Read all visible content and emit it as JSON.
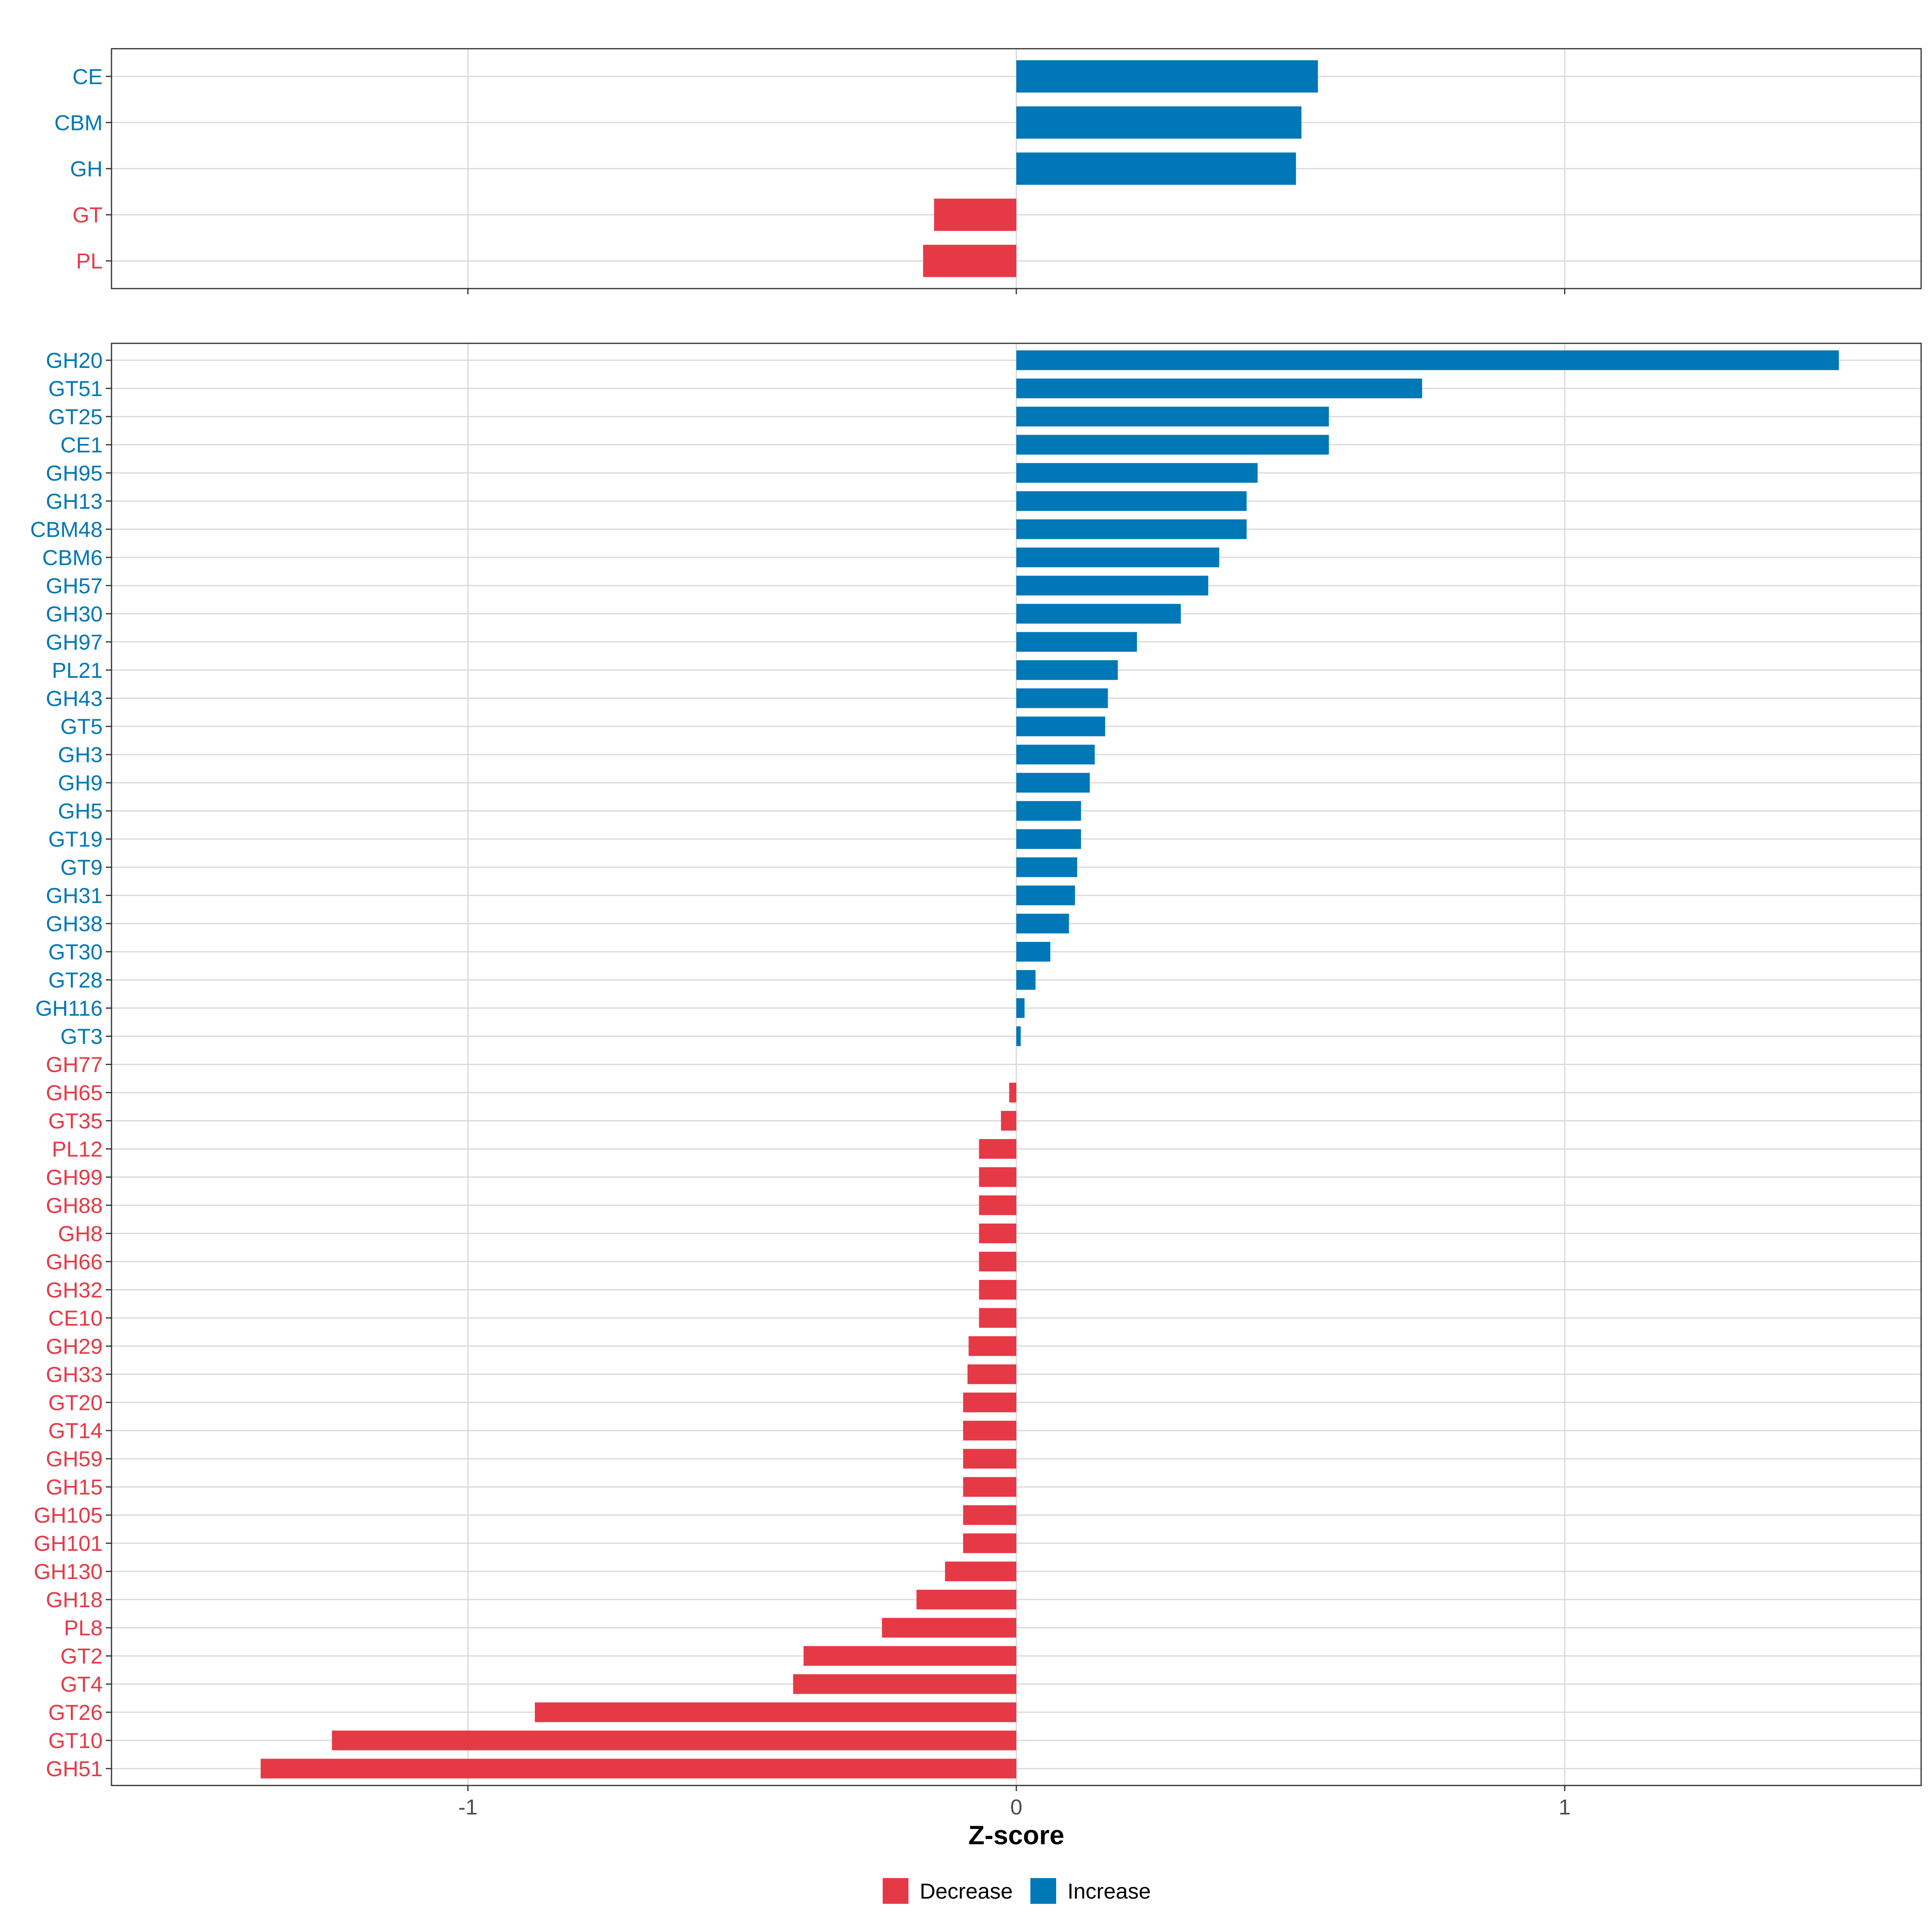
{
  "chart_data": [
    {
      "type": "bar",
      "orientation": "horizontal",
      "panel": "class",
      "categories": [
        "CE",
        "CBM",
        "GH",
        "GT",
        "PL"
      ],
      "values": [
        0.55,
        0.52,
        0.51,
        -0.15,
        -0.17
      ],
      "directions": [
        "Increase",
        "Increase",
        "Increase",
        "Decrease",
        "Decrease"
      ],
      "xlim": [
        -1.65,
        1.65
      ],
      "grid": true
    },
    {
      "type": "bar",
      "orientation": "horizontal",
      "panel": "family",
      "categories": [
        "GH20",
        "GT51",
        "GT25",
        "CE1",
        "GH95",
        "GH13",
        "CBM48",
        "CBM6",
        "GH57",
        "GH30",
        "GH97",
        "PL21",
        "GH43",
        "GT5",
        "GH3",
        "GH9",
        "GH5",
        "GT19",
        "GT9",
        "GH31",
        "GH38",
        "GT30",
        "GT28",
        "GH116",
        "GT3",
        "GH77",
        "GH65",
        "GT35",
        "PL12",
        "GH99",
        "GH88",
        "GH8",
        "GH66",
        "GH32",
        "CE10",
        "GH29",
        "GH33",
        "GT20",
        "GT14",
        "GH59",
        "GH15",
        "GH105",
        "GH101",
        "GH130",
        "GH18",
        "PL8",
        "GT2",
        "GT4",
        "GT26",
        "GT10",
        "GH51"
      ],
      "values": [
        1.5,
        0.74,
        0.57,
        0.57,
        0.44,
        0.42,
        0.42,
        0.37,
        0.35,
        0.3,
        0.22,
        0.185,
        0.167,
        0.162,
        0.143,
        0.134,
        0.118,
        0.118,
        0.111,
        0.107,
        0.096,
        0.062,
        0.035,
        0.015,
        0.008,
        0,
        -0.013,
        -0.028,
        -0.068,
        -0.068,
        -0.068,
        -0.068,
        -0.068,
        -0.068,
        -0.068,
        -0.087,
        -0.089,
        -0.097,
        -0.097,
        -0.097,
        -0.097,
        -0.097,
        -0.097,
        -0.13,
        -0.182,
        -0.245,
        -0.388,
        -0.407,
        -0.878,
        -1.248,
        -1.378
      ],
      "directions": [
        "Increase",
        "Increase",
        "Increase",
        "Increase",
        "Increase",
        "Increase",
        "Increase",
        "Increase",
        "Increase",
        "Increase",
        "Increase",
        "Increase",
        "Increase",
        "Increase",
        "Increase",
        "Increase",
        "Increase",
        "Increase",
        "Increase",
        "Increase",
        "Increase",
        "Increase",
        "Increase",
        "Increase",
        "Increase",
        "Decrease",
        "Decrease",
        "Decrease",
        "Decrease",
        "Decrease",
        "Decrease",
        "Decrease",
        "Decrease",
        "Decrease",
        "Decrease",
        "Decrease",
        "Decrease",
        "Decrease",
        "Decrease",
        "Decrease",
        "Decrease",
        "Decrease",
        "Decrease",
        "Decrease",
        "Decrease",
        "Decrease",
        "Decrease",
        "Decrease",
        "Decrease",
        "Decrease",
        "Decrease"
      ],
      "xlim": [
        -1.65,
        1.65
      ],
      "grid": true
    }
  ],
  "x_ticks": [
    "-1",
    "0",
    "1"
  ],
  "x_tick_values": [
    -1,
    0,
    1
  ],
  "xlabel": "Z-score",
  "legend": {
    "position": "bottom",
    "entries": [
      {
        "label": "Decrease",
        "color": "#e63946"
      },
      {
        "label": "Increase",
        "color": "#0077b6"
      }
    ]
  },
  "colors": {
    "Increase": "#0077b6",
    "Decrease": "#e63946",
    "grid": "#d9d9d9",
    "panel_border": "#333333",
    "tick_text": "#4d4d4d"
  }
}
